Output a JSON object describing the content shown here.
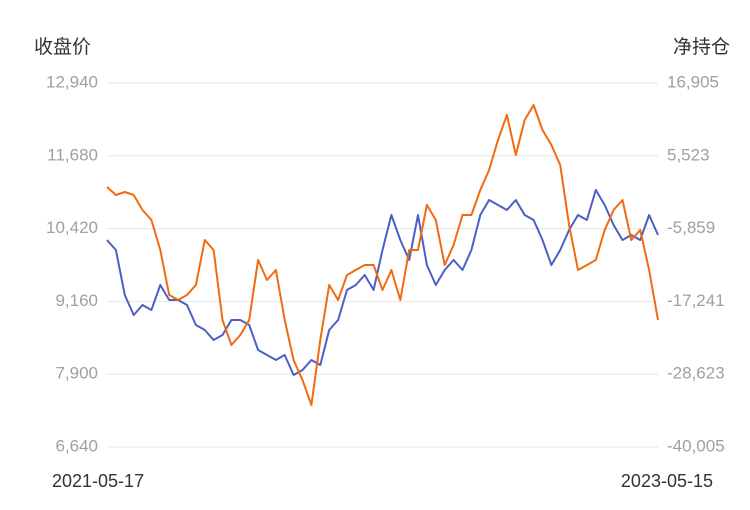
{
  "chart_data": {
    "type": "line",
    "ylabel": "收盘价",
    "y2label": "净持仓",
    "categories": [
      "2021-05-17",
      null,
      null,
      null,
      null,
      null,
      null,
      null,
      null,
      null,
      null,
      null,
      null,
      null,
      null,
      null,
      null,
      null,
      null,
      null,
      null,
      null,
      null,
      null,
      null,
      null,
      null,
      null,
      null,
      null,
      null,
      null,
      null,
      null,
      null,
      null,
      null,
      null,
      null,
      null,
      null,
      null,
      null,
      null,
      null,
      null,
      null,
      null,
      null,
      null,
      null,
      null,
      null,
      null,
      null,
      null,
      null,
      null,
      null,
      null,
      null,
      null,
      "2023-05-15"
    ],
    "series": [
      {
        "color": "#4b5fc4",
        "values": [
          10223,
          10050,
          9271,
          8925,
          9098,
          9011,
          9444,
          9184,
          9184,
          9098,
          8751,
          8665,
          8492,
          8578,
          8838,
          8838,
          8751,
          8319,
          8232,
          8146,
          8232,
          7886,
          7973,
          8146,
          8059,
          8665,
          8838,
          9357,
          9444,
          9617,
          9357,
          10050,
          10655,
          10223,
          9876,
          10655,
          9790,
          9444,
          9703,
          9876,
          9703,
          10050,
          10655,
          10915,
          10828,
          10742,
          10915,
          10655,
          10569,
          10223,
          9790,
          10050,
          10396,
          10655,
          10569,
          11088,
          10828,
          10482,
          10223,
          10309,
          10223,
          10655,
          10309
        ]
      },
      {
        "color": "#f26a10",
        "axis": "y2",
        "values": [
          645,
          -606,
          -137,
          -606,
          -2951,
          -4515,
          -9205,
          -16241,
          -17023,
          -16241,
          -14678,
          -7642,
          -9205,
          -20150,
          -24059,
          -22495,
          -20150,
          -10769,
          -13896,
          -12332,
          -20150,
          -26404,
          -29531,
          -33440,
          -23277,
          -14678,
          -17023,
          -13114,
          -12332,
          -11551,
          -11551,
          -15459,
          -12332,
          -17023,
          -9205,
          -9205,
          -2170,
          -4515,
          -11551,
          -8424,
          -3733,
          -3733,
          176,
          3303,
          7993,
          11902,
          5648,
          11120,
          13465,
          9557,
          7211,
          4084,
          -5297,
          -12332,
          -11551,
          -10769,
          -6078,
          -2951,
          -1388,
          -7642,
          -6078,
          -12332,
          -20150
        ]
      }
    ],
    "ylim": [
      6640,
      12940
    ],
    "yticks": [
      {
        "value": 6640,
        "label": "6,640"
      },
      {
        "value": 7900,
        "label": "7,900"
      },
      {
        "value": 9160,
        "label": "9,160"
      },
      {
        "value": 10420,
        "label": "10,420"
      },
      {
        "value": 11680,
        "label": "11,680"
      },
      {
        "value": 12940,
        "label": "12,940"
      }
    ],
    "y2lim": [
      -40005,
      16905
    ],
    "y2ticks": [
      {
        "value": -40005,
        "label": "-40,005"
      },
      {
        "value": -28623,
        "label": "-28,623"
      },
      {
        "value": -17241,
        "label": "-17,241"
      },
      {
        "value": -5859,
        "label": "-5,859"
      },
      {
        "value": 5523,
        "label": "5,523"
      },
      {
        "value": 16905,
        "label": "16,905"
      }
    ],
    "grid": true
  }
}
